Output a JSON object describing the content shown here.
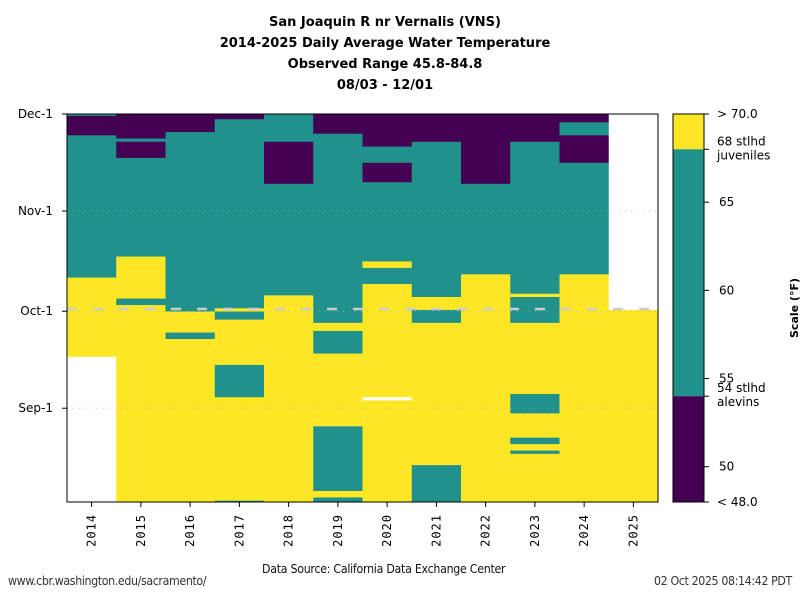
{
  "chart_data": {
    "type": "heatmap",
    "title_lines": [
      "San Joaquin R nr Vernalis (VNS)",
      "2014-2025 Daily Average Water Temperature",
      "Observed Range 45.8-84.8",
      "08/03 - 12/01"
    ],
    "x_categories": [
      "2014",
      "2015",
      "2016",
      "2017",
      "2018",
      "2019",
      "2020",
      "2021",
      "2022",
      "2023",
      "2024",
      "2025"
    ],
    "y_axis": {
      "start_date": "08/03",
      "end_date": "12/01",
      "span_days": 120,
      "ticks": [
        {
          "label": "Sep-1",
          "day": 29
        },
        {
          "label": "Oct-1",
          "day": 59
        },
        {
          "label": "Nov-1",
          "day": 90
        },
        {
          "label": "Dec-1",
          "day": 120
        }
      ],
      "current_date_marker_day": 60
    },
    "color_scale": {
      "label": "Scale (°F)",
      "bins": [
        {
          "name": "high",
          "range": "> 68",
          "color": "#fde725"
        },
        {
          "name": "mid",
          "range": "54 - 68",
          "color": "#21918c"
        },
        {
          "name": "low",
          "range": "< 54",
          "color": "#440154"
        }
      ],
      "min": 48.0,
      "max": 70.0,
      "tick_labels": [
        {
          "value": 70,
          "label": "> 70.0"
        },
        {
          "value": 68,
          "label": "68 stlhd\njuveniles"
        },
        {
          "value": 65,
          "label": "65"
        },
        {
          "value": 60,
          "label": "60"
        },
        {
          "value": 55,
          "label": "55"
        },
        {
          "value": 54,
          "label": "54 stlhd\nalevins"
        },
        {
          "value": 50,
          "label": "50"
        },
        {
          "value": 48,
          "label": "< 48.0"
        }
      ]
    },
    "columns": [
      {
        "year": "2014",
        "segments": [
          {
            "from": 0,
            "to": 45,
            "cat": "none"
          },
          {
            "from": 45,
            "to": 69.5,
            "cat": "high"
          },
          {
            "from": 69.5,
            "to": 113.5,
            "cat": "mid"
          },
          {
            "from": 113.5,
            "to": 119.5,
            "cat": "low"
          },
          {
            "from": 119.5,
            "to": 120,
            "cat": "mid"
          }
        ]
      },
      {
        "year": "2015",
        "segments": [
          {
            "from": 0,
            "to": 61,
            "cat": "high"
          },
          {
            "from": 61,
            "to": 63,
            "cat": "mid"
          },
          {
            "from": 63,
            "to": 76,
            "cat": "high"
          },
          {
            "from": 76,
            "to": 106.5,
            "cat": "mid"
          },
          {
            "from": 106.5,
            "to": 111.5,
            "cat": "low"
          },
          {
            "from": 111.5,
            "to": 112.5,
            "cat": "mid"
          },
          {
            "from": 112.5,
            "to": 120,
            "cat": "low"
          }
        ]
      },
      {
        "year": "2016",
        "segments": [
          {
            "from": 0,
            "to": 50.5,
            "cat": "high"
          },
          {
            "from": 50.5,
            "to": 52.5,
            "cat": "mid"
          },
          {
            "from": 52.5,
            "to": 59,
            "cat": "high"
          },
          {
            "from": 59,
            "to": 114.5,
            "cat": "mid"
          },
          {
            "from": 114.5,
            "to": 120,
            "cat": "low"
          }
        ]
      },
      {
        "year": "2017",
        "segments": [
          {
            "from": 0,
            "to": 0.5,
            "cat": "mid"
          },
          {
            "from": 0.5,
            "to": 32.5,
            "cat": "high"
          },
          {
            "from": 32.5,
            "to": 42.5,
            "cat": "mid"
          },
          {
            "from": 42.5,
            "to": 56.5,
            "cat": "high"
          },
          {
            "from": 56.5,
            "to": 59,
            "cat": "mid"
          },
          {
            "from": 59,
            "to": 60,
            "cat": "high"
          },
          {
            "from": 60,
            "to": 118.5,
            "cat": "mid"
          },
          {
            "from": 118.5,
            "to": 120,
            "cat": "low"
          }
        ]
      },
      {
        "year": "2018",
        "segments": [
          {
            "from": 0,
            "to": 64,
            "cat": "high"
          },
          {
            "from": 64,
            "to": 98.5,
            "cat": "mid"
          },
          {
            "from": 98.5,
            "to": 111.5,
            "cat": "low"
          },
          {
            "from": 111.5,
            "to": 120,
            "cat": "mid"
          }
        ]
      },
      {
        "year": "2019",
        "segments": [
          {
            "from": 0,
            "to": 1.5,
            "cat": "mid"
          },
          {
            "from": 1.5,
            "to": 3.5,
            "cat": "high"
          },
          {
            "from": 3.5,
            "to": 23.5,
            "cat": "mid"
          },
          {
            "from": 23.5,
            "to": 46,
            "cat": "high"
          },
          {
            "from": 46,
            "to": 53,
            "cat": "mid"
          },
          {
            "from": 53,
            "to": 55.5,
            "cat": "high"
          },
          {
            "from": 55.5,
            "to": 114,
            "cat": "mid"
          },
          {
            "from": 114,
            "to": 120,
            "cat": "low"
          }
        ]
      },
      {
        "year": "2020",
        "segments": [
          {
            "from": 0,
            "to": 31.5,
            "cat": "high"
          },
          {
            "from": 31.5,
            "to": 32.5,
            "cat": "none"
          },
          {
            "from": 32.5,
            "to": 67.5,
            "cat": "high"
          },
          {
            "from": 67.5,
            "to": 72.5,
            "cat": "mid"
          },
          {
            "from": 72.5,
            "to": 74.5,
            "cat": "high"
          },
          {
            "from": 74.5,
            "to": 99,
            "cat": "mid"
          },
          {
            "from": 99,
            "to": 105,
            "cat": "low"
          },
          {
            "from": 105,
            "to": 110,
            "cat": "mid"
          },
          {
            "from": 110,
            "to": 120,
            "cat": "low"
          }
        ]
      },
      {
        "year": "2021",
        "segments": [
          {
            "from": 0,
            "to": 11.5,
            "cat": "mid"
          },
          {
            "from": 11.5,
            "to": 55.5,
            "cat": "high"
          },
          {
            "from": 55.5,
            "to": 59.5,
            "cat": "mid"
          },
          {
            "from": 59.5,
            "to": 63.5,
            "cat": "high"
          },
          {
            "from": 63.5,
            "to": 111.5,
            "cat": "mid"
          },
          {
            "from": 111.5,
            "to": 120,
            "cat": "low"
          }
        ]
      },
      {
        "year": "2022",
        "segments": [
          {
            "from": 0,
            "to": 70.5,
            "cat": "high"
          },
          {
            "from": 70.5,
            "to": 98.5,
            "cat": "mid"
          },
          {
            "from": 98.5,
            "to": 120,
            "cat": "low"
          }
        ]
      },
      {
        "year": "2023",
        "segments": [
          {
            "from": 0,
            "to": 15,
            "cat": "high"
          },
          {
            "from": 15,
            "to": 16,
            "cat": "mid"
          },
          {
            "from": 16,
            "to": 18,
            "cat": "high"
          },
          {
            "from": 18,
            "to": 20,
            "cat": "mid"
          },
          {
            "from": 20,
            "to": 27.5,
            "cat": "high"
          },
          {
            "from": 27.5,
            "to": 33.5,
            "cat": "mid"
          },
          {
            "from": 33.5,
            "to": 55.5,
            "cat": "high"
          },
          {
            "from": 55.5,
            "to": 63.5,
            "cat": "mid"
          },
          {
            "from": 63.5,
            "to": 64.5,
            "cat": "high"
          },
          {
            "from": 64.5,
            "to": 111.5,
            "cat": "mid"
          },
          {
            "from": 111.5,
            "to": 120,
            "cat": "low"
          }
        ]
      },
      {
        "year": "2024",
        "segments": [
          {
            "from": 0,
            "to": 70.5,
            "cat": "high"
          },
          {
            "from": 70.5,
            "to": 105,
            "cat": "mid"
          },
          {
            "from": 105,
            "to": 113.5,
            "cat": "low"
          },
          {
            "from": 113.5,
            "to": 117.5,
            "cat": "mid"
          },
          {
            "from": 117.5,
            "to": 120,
            "cat": "low"
          }
        ]
      },
      {
        "year": "2025",
        "segments": [
          {
            "from": 0,
            "to": 59.5,
            "cat": "high"
          },
          {
            "from": 59.5,
            "to": 120,
            "cat": "none"
          }
        ]
      }
    ]
  },
  "footer": {
    "source": "Data Source: California Data Exchange Center",
    "url": "www.cbr.washington.edu/sacramento/",
    "timestamp": "02 Oct 2025 08:14:42 PDT"
  }
}
